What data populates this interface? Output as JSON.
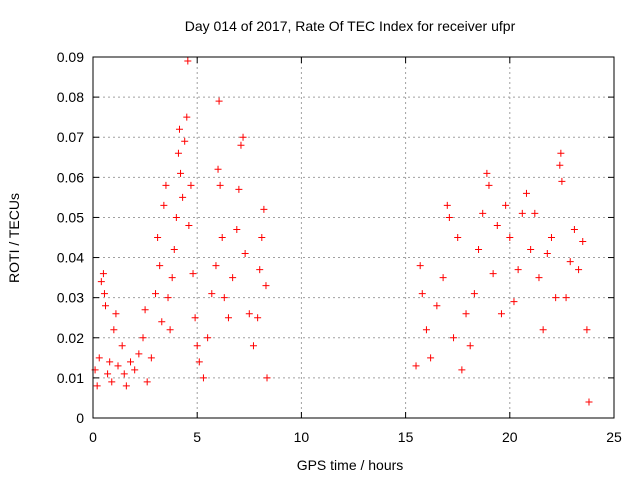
{
  "chart_data": {
    "type": "scatter",
    "title": "Day 014 of 2017, Rate Of TEC Index for receiver ufpr",
    "xlabel": "GPS time / hours",
    "ylabel": "ROTI / TECUs",
    "xlim": [
      0,
      25
    ],
    "ylim": [
      0,
      0.09
    ],
    "xticks": [
      0,
      5,
      10,
      15,
      20,
      25
    ],
    "xtick_labels": [
      "0",
      "5",
      "10",
      "15",
      "20",
      "25"
    ],
    "yticks": [
      0,
      0.01,
      0.02,
      0.03,
      0.04,
      0.05,
      0.06,
      0.07,
      0.08,
      0.09
    ],
    "ytick_labels": [
      "0",
      "0.01",
      "0.02",
      "0.03",
      "0.04",
      "0.05",
      "0.06",
      "0.07",
      "0.08",
      "0.09"
    ],
    "grid": true,
    "marker": "plus",
    "color": "#ff0000",
    "series": [
      {
        "points": [
          [
            0.1,
            0.012
          ],
          [
            0.2,
            0.008
          ],
          [
            0.3,
            0.015
          ],
          [
            0.4,
            0.034
          ],
          [
            0.5,
            0.036
          ],
          [
            0.55,
            0.031
          ],
          [
            0.6,
            0.028
          ],
          [
            0.7,
            0.011
          ],
          [
            0.8,
            0.014
          ],
          [
            0.9,
            0.009
          ],
          [
            1.0,
            0.022
          ],
          [
            1.1,
            0.026
          ],
          [
            1.2,
            0.013
          ],
          [
            1.4,
            0.018
          ],
          [
            1.5,
            0.011
          ],
          [
            1.6,
            0.008
          ],
          [
            1.8,
            0.014
          ],
          [
            2.0,
            0.012
          ],
          [
            2.2,
            0.016
          ],
          [
            2.4,
            0.02
          ],
          [
            2.5,
            0.027
          ],
          [
            2.6,
            0.009
          ],
          [
            2.8,
            0.015
          ],
          [
            3.0,
            0.031
          ],
          [
            3.1,
            0.045
          ],
          [
            3.2,
            0.038
          ],
          [
            3.3,
            0.024
          ],
          [
            3.4,
            0.053
          ],
          [
            3.5,
            0.058
          ],
          [
            3.6,
            0.03
          ],
          [
            3.7,
            0.022
          ],
          [
            3.8,
            0.035
          ],
          [
            3.9,
            0.042
          ],
          [
            4.0,
            0.05
          ],
          [
            4.1,
            0.066
          ],
          [
            4.15,
            0.072
          ],
          [
            4.2,
            0.061
          ],
          [
            4.3,
            0.055
          ],
          [
            4.4,
            0.069
          ],
          [
            4.5,
            0.075
          ],
          [
            4.55,
            0.089
          ],
          [
            4.6,
            0.048
          ],
          [
            4.7,
            0.058
          ],
          [
            4.8,
            0.036
          ],
          [
            4.9,
            0.025
          ],
          [
            5.0,
            0.018
          ],
          [
            5.1,
            0.014
          ],
          [
            5.3,
            0.01
          ],
          [
            5.5,
            0.02
          ],
          [
            5.7,
            0.031
          ],
          [
            5.9,
            0.038
          ],
          [
            6.0,
            0.062
          ],
          [
            6.05,
            0.079
          ],
          [
            6.1,
            0.058
          ],
          [
            6.2,
            0.045
          ],
          [
            6.3,
            0.03
          ],
          [
            6.5,
            0.025
          ],
          [
            6.7,
            0.035
          ],
          [
            6.9,
            0.047
          ],
          [
            7.0,
            0.057
          ],
          [
            7.1,
            0.068
          ],
          [
            7.2,
            0.07
          ],
          [
            7.3,
            0.041
          ],
          [
            7.5,
            0.026
          ],
          [
            7.7,
            0.018
          ],
          [
            7.9,
            0.025
          ],
          [
            8.0,
            0.037
          ],
          [
            8.1,
            0.045
          ],
          [
            8.2,
            0.052
          ],
          [
            8.3,
            0.033
          ],
          [
            8.35,
            0.01
          ]
        ]
      },
      {
        "points": [
          [
            15.5,
            0.013
          ],
          [
            15.7,
            0.038
          ],
          [
            15.8,
            0.031
          ],
          [
            16.0,
            0.022
          ],
          [
            16.2,
            0.015
          ],
          [
            16.5,
            0.028
          ],
          [
            16.8,
            0.035
          ],
          [
            17.0,
            0.053
          ],
          [
            17.1,
            0.05
          ],
          [
            17.3,
            0.02
          ],
          [
            17.5,
            0.045
          ],
          [
            17.7,
            0.012
          ],
          [
            17.9,
            0.026
          ],
          [
            18.1,
            0.018
          ],
          [
            18.3,
            0.031
          ],
          [
            18.5,
            0.042
          ],
          [
            18.7,
            0.051
          ],
          [
            18.9,
            0.061
          ],
          [
            19.0,
            0.058
          ],
          [
            19.2,
            0.036
          ],
          [
            19.4,
            0.048
          ],
          [
            19.6,
            0.026
          ],
          [
            19.8,
            0.053
          ],
          [
            20.0,
            0.045
          ],
          [
            20.2,
            0.029
          ],
          [
            20.4,
            0.037
          ],
          [
            20.6,
            0.051
          ],
          [
            20.8,
            0.056
          ],
          [
            21.0,
            0.042
          ],
          [
            21.2,
            0.051
          ],
          [
            21.4,
            0.035
          ],
          [
            21.6,
            0.022
          ],
          [
            21.8,
            0.041
          ],
          [
            22.0,
            0.045
          ],
          [
            22.2,
            0.03
          ],
          [
            22.4,
            0.063
          ],
          [
            22.45,
            0.066
          ],
          [
            22.5,
            0.059
          ],
          [
            22.7,
            0.03
          ],
          [
            22.9,
            0.039
          ],
          [
            23.1,
            0.047
          ],
          [
            23.3,
            0.037
          ],
          [
            23.5,
            0.044
          ],
          [
            23.7,
            0.022
          ],
          [
            23.8,
            0.004
          ]
        ]
      }
    ]
  }
}
